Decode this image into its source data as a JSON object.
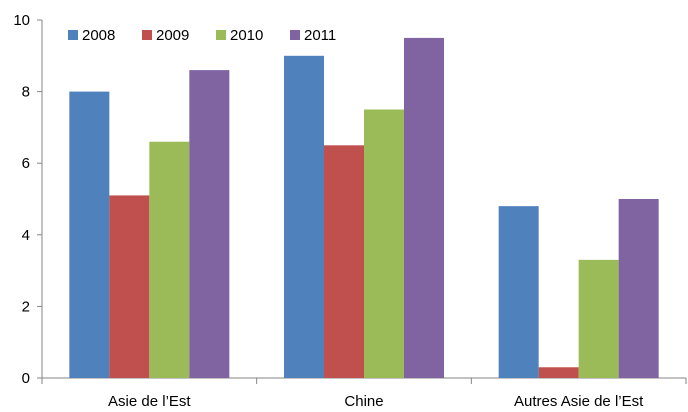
{
  "chart_data": {
    "type": "bar",
    "categories": [
      "Asie de l’Est",
      "Chine",
      "Autres Asie de l’Est"
    ],
    "series": [
      {
        "name": "2008",
        "color": "#4F81BD",
        "values": [
          8.0,
          9.0,
          4.8
        ]
      },
      {
        "name": "2009",
        "color": "#C0504D",
        "values": [
          5.1,
          6.5,
          0.3
        ]
      },
      {
        "name": "2010",
        "color": "#9BBB59",
        "values": [
          6.6,
          7.5,
          3.3
        ]
      },
      {
        "name": "2011",
        "color": "#8064A2",
        "values": [
          8.6,
          9.5,
          5.0
        ]
      }
    ],
    "yticks": [
      "0",
      "2",
      "4",
      "6",
      "8",
      "10"
    ],
    "ylim": [
      0,
      10
    ],
    "title": "",
    "xlabel": "",
    "ylabel": "",
    "grid": false,
    "legend_position": "top-left"
  }
}
